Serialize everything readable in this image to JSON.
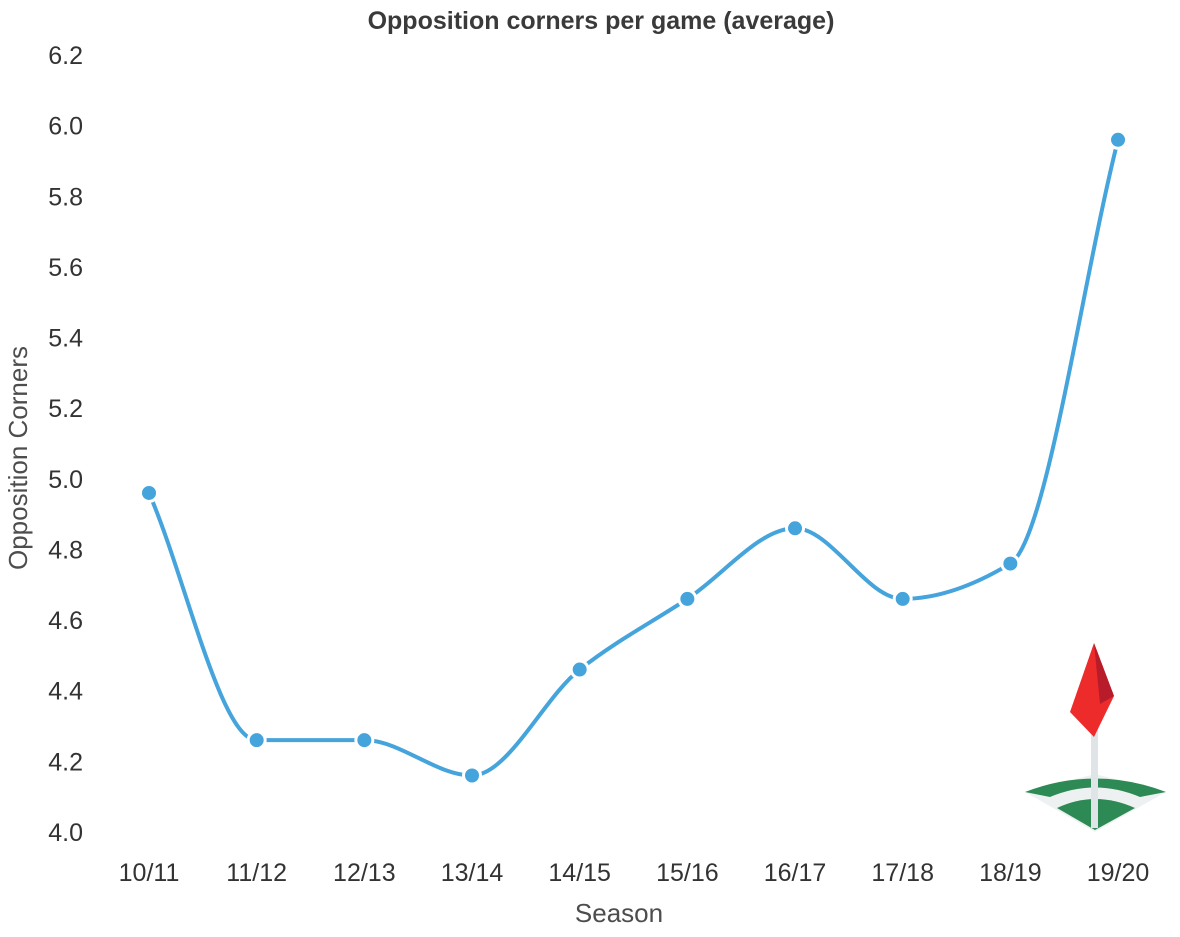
{
  "chart_data": {
    "type": "line",
    "title": "Opposition corners per game (average)",
    "xlabel": "Season",
    "ylabel": "Opposition Corners",
    "categories": [
      "10/11",
      "11/12",
      "12/13",
      "13/14",
      "14/15",
      "15/16",
      "16/17",
      "17/18",
      "18/19",
      "19/20"
    ],
    "values": [
      4.96,
      4.26,
      4.26,
      4.16,
      4.46,
      4.66,
      4.86,
      4.66,
      4.76,
      5.96
    ],
    "ylim": [
      4.0,
      6.2
    ],
    "yticks": [
      "4.0",
      "4.2",
      "4.4",
      "4.6",
      "4.8",
      "5.0",
      "5.2",
      "5.4",
      "5.6",
      "5.8",
      "6.0",
      "6.2"
    ],
    "grid": false,
    "legend": "none",
    "line_color": "#45a4dc",
    "decoration_icon": "corner-flag-icon"
  }
}
